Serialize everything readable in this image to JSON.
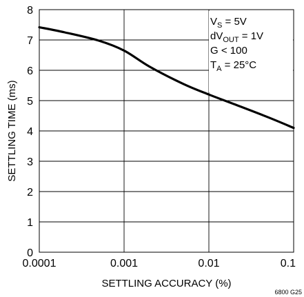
{
  "chart_data": {
    "type": "line",
    "title": "",
    "xlabel": "SETTLING ACCURACY (%)",
    "ylabel": "SETTLING TIME (ms)",
    "x_scale": "log",
    "xlim": [
      0.0001,
      0.1
    ],
    "ylim": [
      0,
      8
    ],
    "x_ticks": [
      0.0001,
      0.001,
      0.01,
      0.1
    ],
    "x_tick_labels": [
      "0.0001",
      "0.001",
      "0.01",
      "0.1"
    ],
    "y_ticks": [
      0,
      1,
      2,
      3,
      4,
      5,
      6,
      7,
      8
    ],
    "y_tick_labels": [
      "0",
      "1",
      "2",
      "3",
      "4",
      "5",
      "6",
      "7",
      "8"
    ],
    "grid": true,
    "series": [
      {
        "color": "#000000",
        "x": [
          0.0001,
          0.0002,
          0.0005,
          0.001,
          0.002,
          0.005,
          0.01,
          0.02,
          0.05,
          0.1
        ],
        "y": [
          7.42,
          7.25,
          6.98,
          6.65,
          6.12,
          5.55,
          5.2,
          4.88,
          4.45,
          4.1
        ]
      }
    ],
    "annotations": [
      {
        "main": "V",
        "sub": "S",
        "rest": " = 5V"
      },
      {
        "main": "dV",
        "sub": "OUT",
        "rest": " = 1V"
      },
      {
        "main": "G < 100",
        "sub": "",
        "rest": ""
      },
      {
        "main": "T",
        "sub": "A",
        "rest": " = 25°C"
      }
    ],
    "figure_id": "6800 G25"
  }
}
